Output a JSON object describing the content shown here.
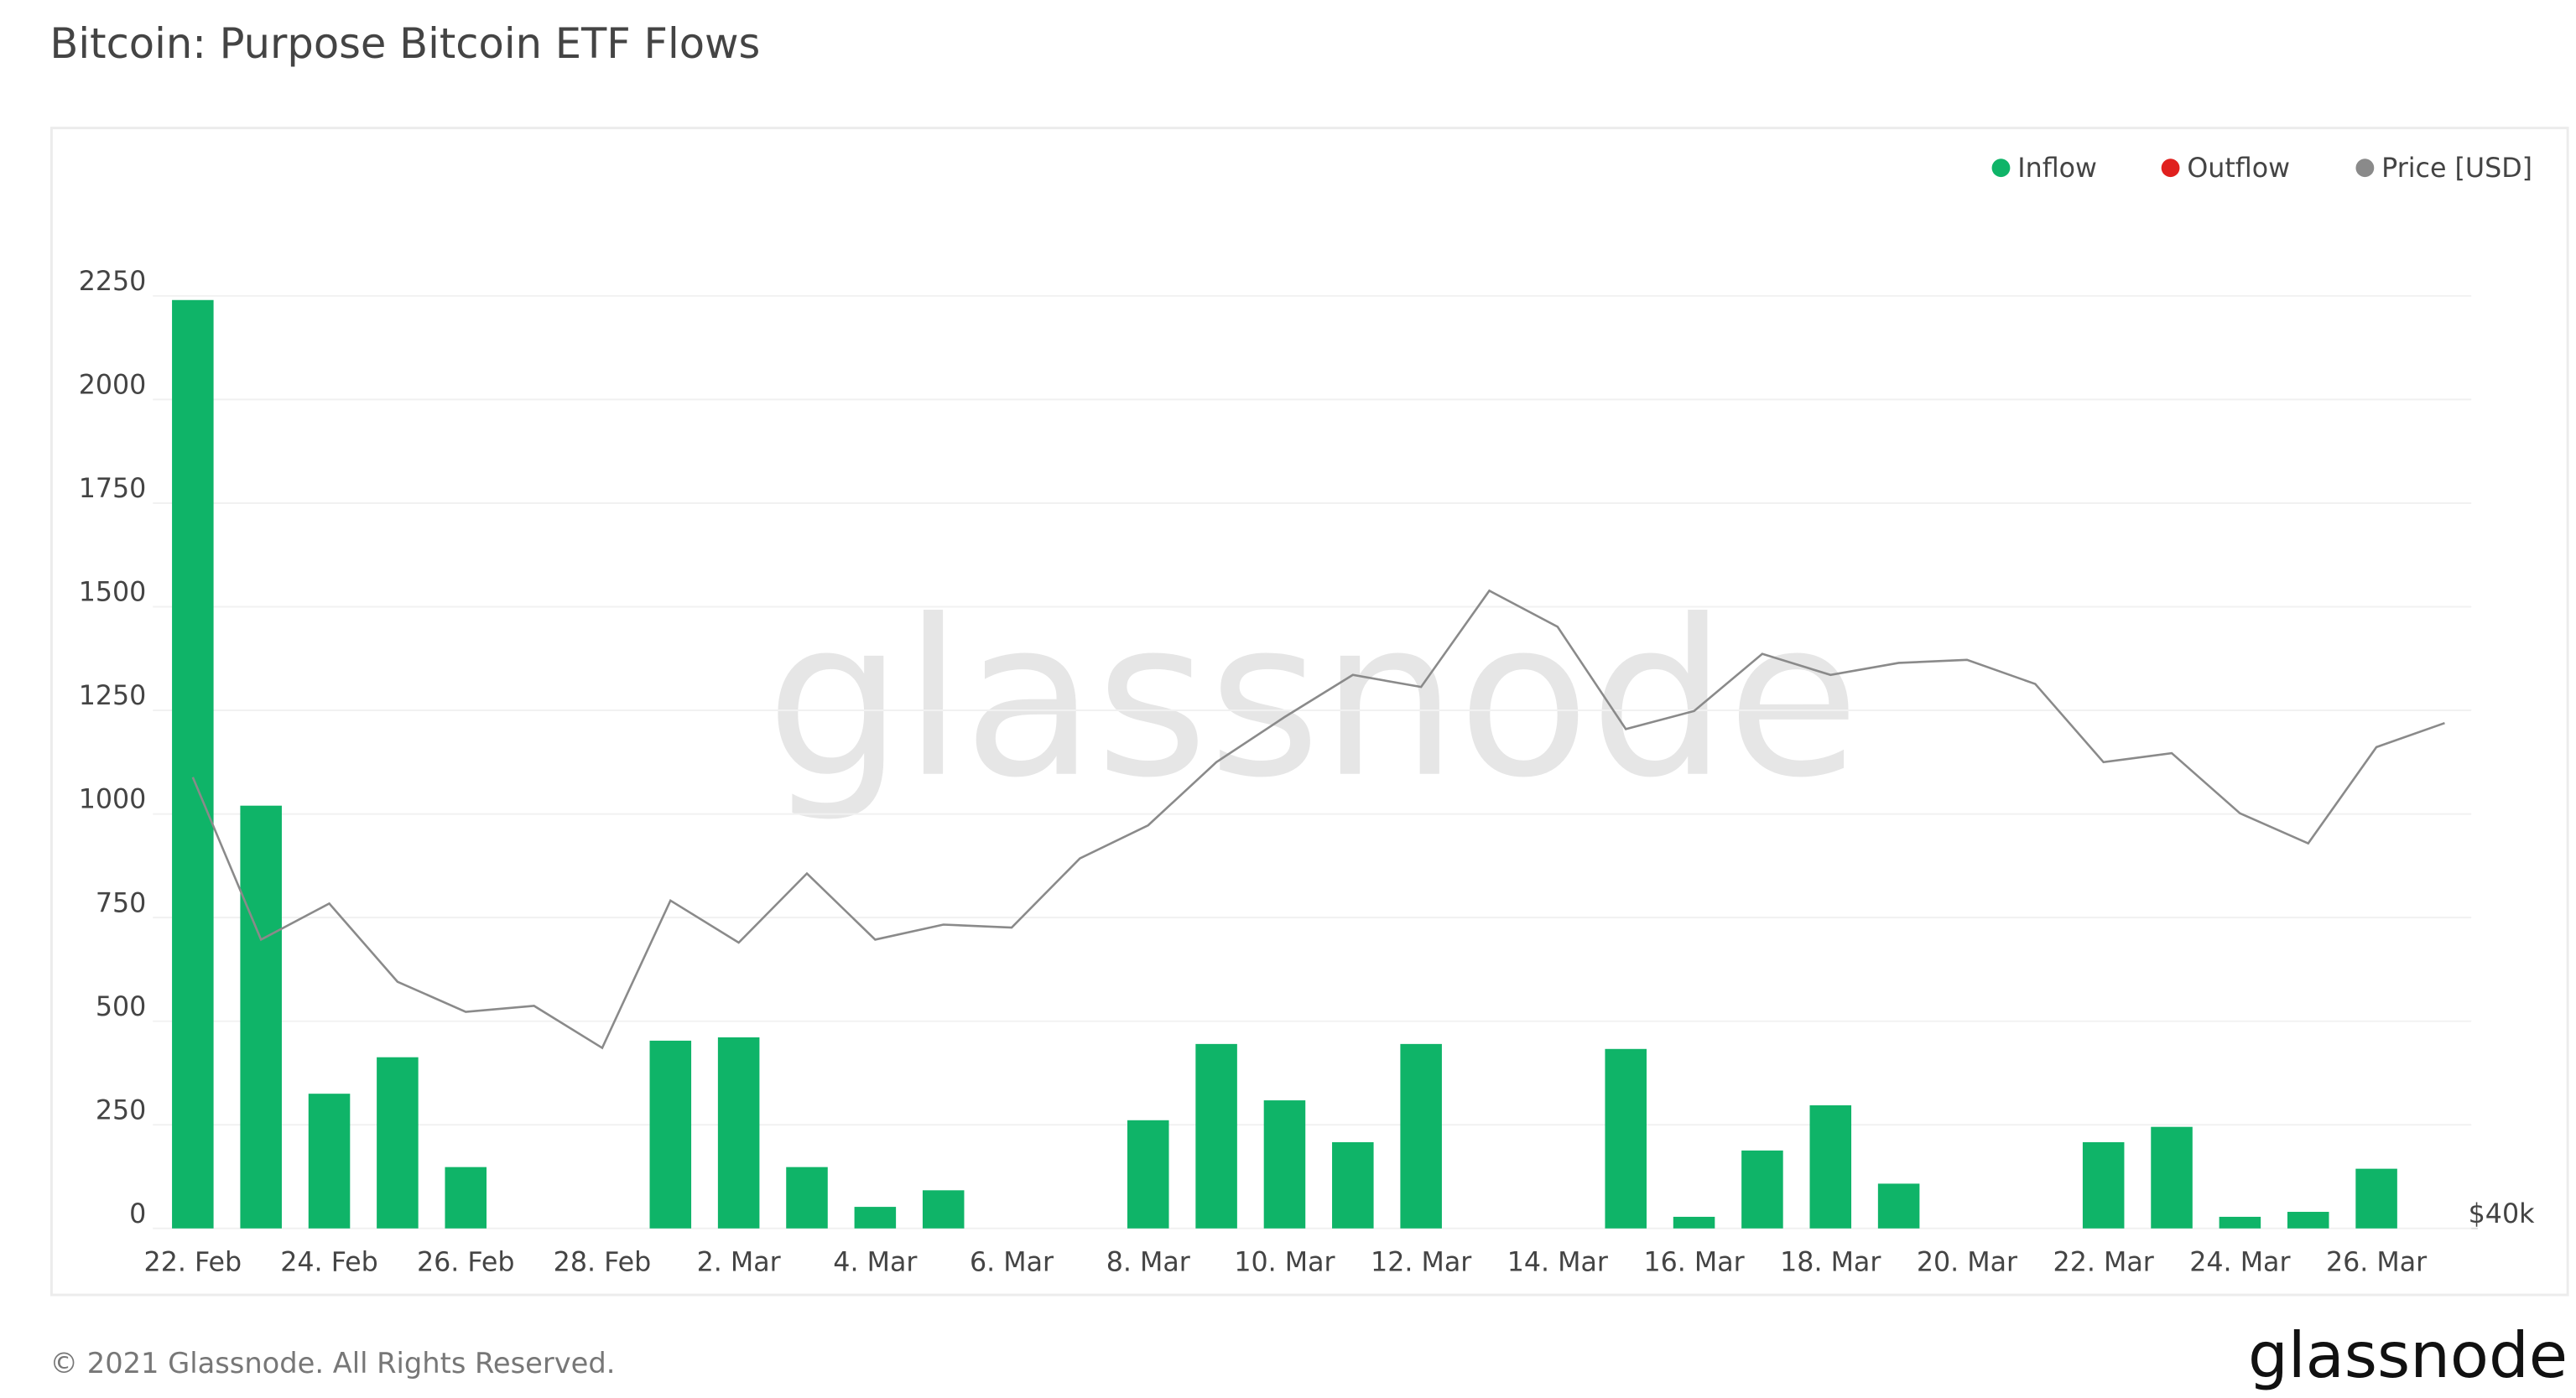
{
  "chart_data": {
    "type": "bar",
    "title": "Bitcoin: Purpose Bitcoin ETF Flows",
    "watermark": "glassnode",
    "footer": "© 2021 Glassnode. All Rights Reserved.",
    "logo": "glassnode",
    "categories": [
      "22. Feb",
      null,
      "24. Feb",
      null,
      "26. Feb",
      null,
      "28. Feb",
      null,
      "2. Mar",
      null,
      "4. Mar",
      null,
      "6. Mar",
      null,
      "8. Mar",
      null,
      "10. Mar",
      null,
      "12. Mar",
      null,
      "14. Mar",
      null,
      "16. Mar",
      null,
      "18. Mar",
      null,
      "20. Mar",
      null,
      "22. Mar",
      null,
      "24. Mar",
      null,
      "26. Mar",
      null
    ],
    "series": [
      {
        "name": "Inflow",
        "color": "#0fb468",
        "values": [
          2240,
          1020,
          325,
          413,
          148,
          0,
          0,
          453,
          461,
          148,
          52,
          92,
          0,
          0,
          261,
          445,
          309,
          208,
          445,
          0,
          0,
          433,
          28,
          188,
          297,
          108,
          0,
          0,
          208,
          245,
          28,
          40,
          144,
          0
        ]
      },
      {
        "name": "Outflow",
        "color": "#e0201e",
        "values": [
          0,
          0,
          0,
          0,
          0,
          0,
          0,
          0,
          0,
          0,
          0,
          0,
          0,
          0,
          0,
          0,
          0,
          0,
          0,
          0,
          0,
          0,
          0,
          0,
          0,
          0,
          0,
          0,
          0,
          0,
          0,
          0,
          0,
          0
        ]
      },
      {
        "name": "Price [USD]",
        "color": "#8a8a8a",
        "axis": "y2",
        "values": [
          55000,
          49600,
          50800,
          48200,
          47200,
          47400,
          46000,
          50900,
          49500,
          51800,
          49600,
          50100,
          50000,
          52300,
          53400,
          55500,
          57000,
          58400,
          58000,
          61200,
          60000,
          56600,
          57200,
          59100,
          58400,
          58800,
          58900,
          58100,
          55500,
          55800,
          53800,
          52800,
          56000,
          56800
        ]
      }
    ],
    "ylim": [
      0,
      2250
    ],
    "yticks": [
      0,
      250,
      500,
      750,
      1000,
      1250,
      1500,
      1750,
      2000,
      2250
    ],
    "y2lim": [
      40000,
      71000
    ],
    "y2ticks": [
      {
        "value": 40000,
        "label": "$40k"
      }
    ],
    "grid": true,
    "legend": "top-right"
  }
}
